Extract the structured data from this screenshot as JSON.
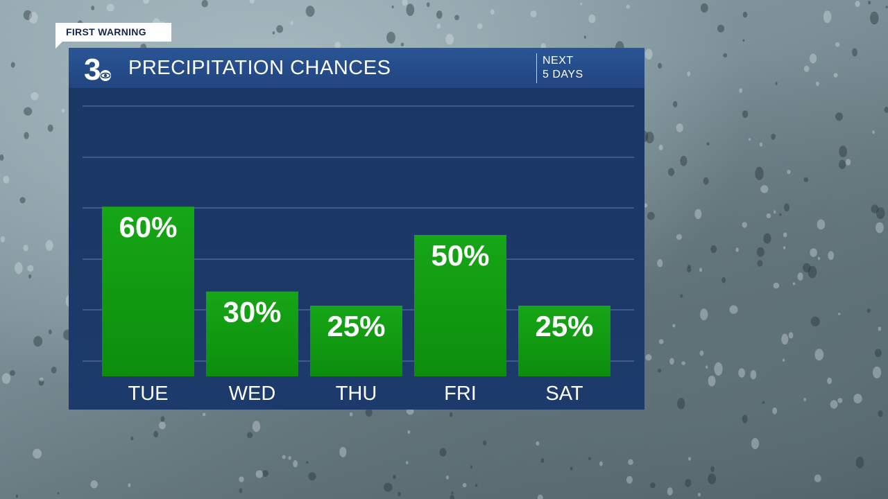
{
  "tag": {
    "label": "FIRST WARNING"
  },
  "header": {
    "logo_icon": "channel-3-logo-icon",
    "title": "PRECIPITATION CHANCES",
    "sub_line1": "NEXT",
    "sub_line2": "5 DAYS"
  },
  "colors": {
    "panel": "#1a3462",
    "header": "#2a5596",
    "bar_top": "#14a314",
    "bar_bottom": "#0c8e0c",
    "gridline": "#4c6594"
  },
  "chart_data": {
    "type": "bar",
    "title": "PRECIPITATION CHANCES",
    "categories": [
      "TUE",
      "WED",
      "THU",
      "FRI",
      "SAT"
    ],
    "values": [
      60,
      30,
      25,
      50,
      25
    ],
    "value_labels": [
      "60%",
      "30%",
      "25%",
      "50%",
      "25%"
    ],
    "ylim": [
      0,
      100
    ],
    "grid": true,
    "legend": "none"
  }
}
